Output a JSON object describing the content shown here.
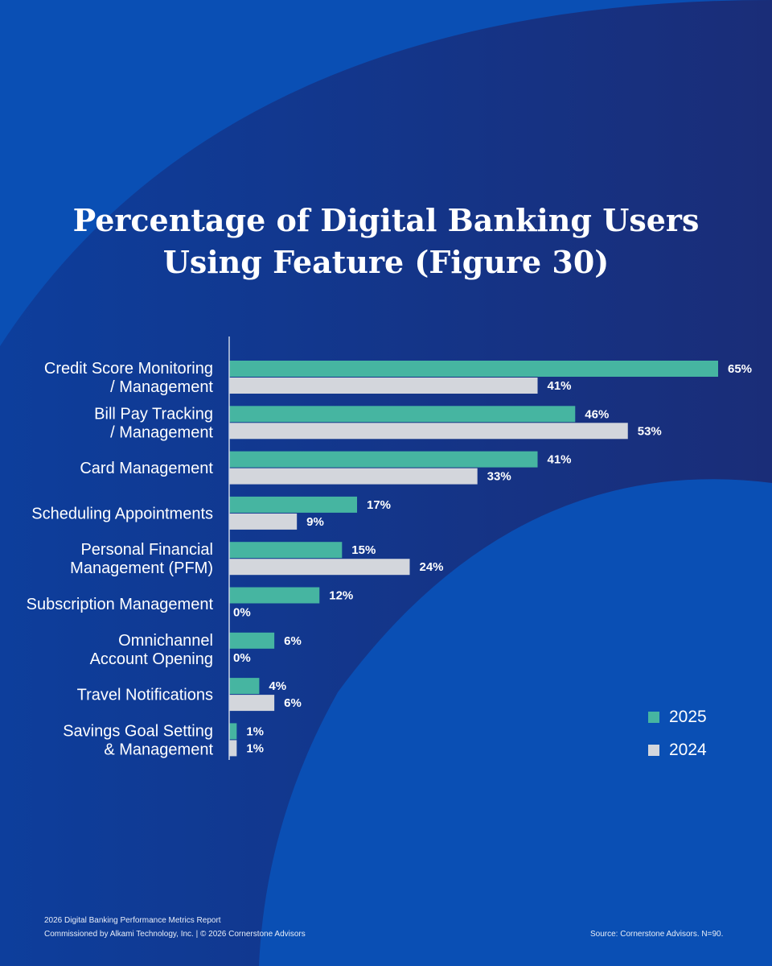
{
  "colors": {
    "background_dark": "#14307e",
    "background_light": "#0a4fb4",
    "series_2025": "#46b5a1",
    "series_2024": "#d3d6dc",
    "text": "#ffffff"
  },
  "title_lines": [
    "Percentage of Digital Banking Users",
    "Using Feature (Figure 30)"
  ],
  "chart_data": {
    "type": "bar",
    "orientation": "horizontal",
    "title": "Percentage of Digital Banking Users Using Feature (Figure 30)",
    "categories": [
      [
        "Credit Score Monitoring",
        "/ Management"
      ],
      [
        "Bill Pay Tracking",
        "/ Management"
      ],
      [
        "Card Management"
      ],
      [
        "Scheduling Appointments"
      ],
      [
        "Personal Financial",
        "Management (PFM)"
      ],
      [
        "Subscription Management"
      ],
      [
        "Omnichannel",
        "Account Opening"
      ],
      [
        "Travel Notifications"
      ],
      [
        "Savings Goal Setting",
        "& Management"
      ]
    ],
    "series": [
      {
        "name": "2025",
        "values": [
          65,
          46,
          41,
          17,
          15,
          12,
          6,
          4,
          1
        ]
      },
      {
        "name": "2024",
        "values": [
          41,
          53,
          33,
          9,
          24,
          0,
          0,
          6,
          1
        ]
      }
    ],
    "value_suffix": "%",
    "xlim": [
      0,
      65
    ],
    "grid": false,
    "legend_position": "right"
  },
  "legend": [
    {
      "label": "2025"
    },
    {
      "label": "2024"
    }
  ],
  "footer": {
    "report_name": "2026 Digital Banking Performance Metrics Report",
    "commissioned": "Commissioned by Alkami Technology, Inc.  |  © 2026 Cornerstone Advisors",
    "source": "Source: Cornerstone Advisors. N=90."
  }
}
